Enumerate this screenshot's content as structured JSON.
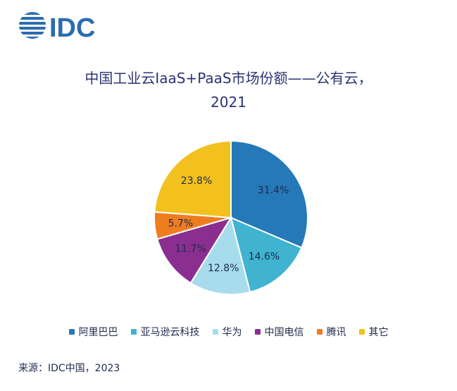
{
  "header": {
    "logo_text": "IDC"
  },
  "chart_data": {
    "type": "pie",
    "title": "中国工业云IaaS+PaaS市场份额——公有云，",
    "subtitle": "2021",
    "categories": [
      "阿里巴巴",
      "亚马逊云科技",
      "华为",
      "中国电信",
      "腾讯",
      "其它"
    ],
    "values": [
      31.4,
      14.6,
      12.8,
      11.7,
      5.7,
      23.8
    ],
    "value_labels": [
      "31.4%",
      "14.6%",
      "12.8%",
      "11.7%",
      "5.7%",
      "23.8%"
    ],
    "colors": [
      "#2579b8",
      "#3fb3cf",
      "#a6dceb",
      "#8a2f8f",
      "#ee7d20",
      "#f2c11e"
    ],
    "legend_position": "bottom"
  },
  "footer": {
    "source": "来源：IDC中国，2023"
  }
}
